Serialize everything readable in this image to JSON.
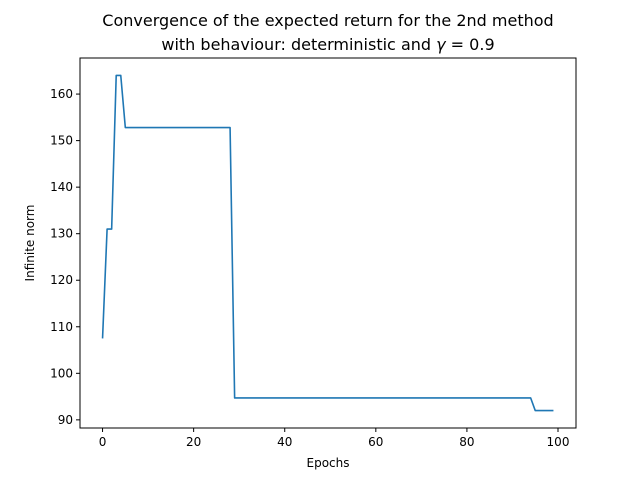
{
  "chart_data": {
    "type": "line",
    "title_line1": "Convergence of the expected return for the 2nd method",
    "title_line2_prefix": "with behaviour: deterministic and ",
    "title_line2_gamma": "γ",
    "title_line2_suffix": " = 0.9",
    "xlabel": "Epochs",
    "ylabel": "Infinite norm",
    "xlim": [
      -4.95,
      103.95
    ],
    "ylim": [
      88.25,
      167.75
    ],
    "xticks": [
      0,
      20,
      40,
      60,
      80,
      100
    ],
    "yticks": [
      90,
      100,
      110,
      120,
      130,
      140,
      150,
      160
    ],
    "grid": false,
    "line_color": "#1f77b4",
    "series": [
      {
        "points": [
          [
            0,
            107.5
          ],
          [
            1,
            131
          ],
          [
            2,
            131
          ],
          [
            3,
            164
          ],
          [
            4,
            164
          ],
          [
            5,
            152.8
          ],
          [
            6,
            152.8
          ],
          [
            28,
            152.8
          ],
          [
            29,
            94.7
          ],
          [
            94,
            94.7
          ],
          [
            95,
            92
          ],
          [
            99,
            92
          ]
        ]
      }
    ]
  }
}
